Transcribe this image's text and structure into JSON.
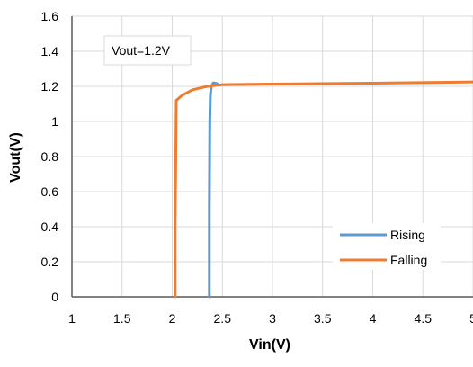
{
  "chart_data": {
    "type": "line",
    "xlabel": "Vin(V)",
    "ylabel": "Vout(V)",
    "xlim": [
      1,
      5
    ],
    "ylim": [
      0,
      1.6
    ],
    "x_ticks": [
      "1",
      "1.5",
      "2",
      "2.5",
      "3",
      "3.5",
      "4",
      "4.5",
      "5"
    ],
    "y_ticks": [
      "0",
      "0.2",
      "0.4",
      "0.6",
      "0.8",
      "1",
      "1.2",
      "1.4",
      "1.6"
    ],
    "grid": true,
    "legend_position": "bottom-right",
    "annotation": "Vout=1.2V",
    "series": [
      {
        "name": "Rising",
        "color": "#5b9bd5",
        "points": [
          [
            2.37,
            0.0
          ],
          [
            2.37,
            0.5
          ],
          [
            2.375,
            1.0
          ],
          [
            2.38,
            1.15
          ],
          [
            2.39,
            1.2
          ],
          [
            2.41,
            1.22
          ],
          [
            2.45,
            1.215
          ]
        ]
      },
      {
        "name": "Falling",
        "color": "#ed7d31",
        "points": [
          [
            2.03,
            0.0
          ],
          [
            2.03,
            0.4
          ],
          [
            2.04,
            1.12
          ],
          [
            2.1,
            1.15
          ],
          [
            2.2,
            1.18
          ],
          [
            2.35,
            1.2
          ],
          [
            2.5,
            1.21
          ],
          [
            3.0,
            1.213
          ],
          [
            4.0,
            1.218
          ],
          [
            5.0,
            1.225
          ]
        ]
      }
    ]
  }
}
